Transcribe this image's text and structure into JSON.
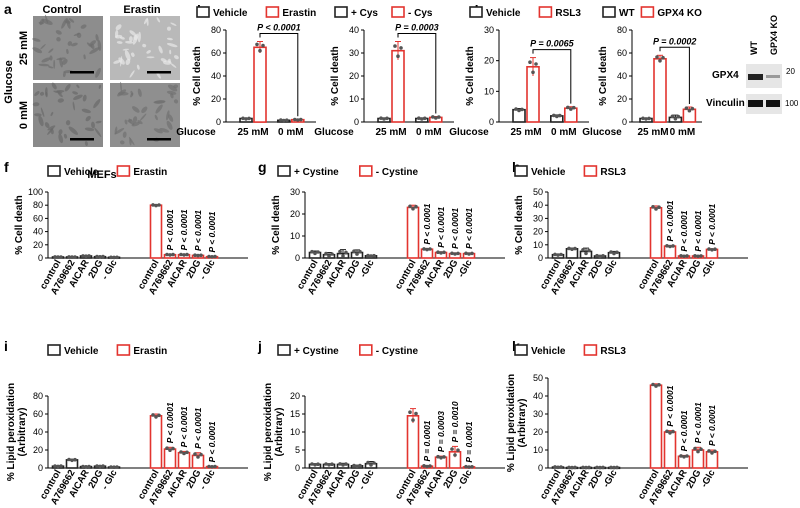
{
  "colors": {
    "vehicle": "#222222",
    "treated": "#e3342f",
    "dot": "#555555"
  },
  "panel_a": {
    "label": "a",
    "col_labels": [
      "Control",
      "Erastin"
    ],
    "row_labels": [
      "25 mM",
      "0 mM"
    ],
    "side_label": "Glucose",
    "bottom_label": "MEFs"
  },
  "western": {
    "col_labels": [
      "WT",
      "GPX4 KO"
    ],
    "rows": [
      "GPX4",
      "Vinculin"
    ],
    "markers": [
      "20",
      "100"
    ]
  },
  "chart_data": [
    {
      "id": "b",
      "type": "bar",
      "ylabel": "% Cell death",
      "ylim": [
        0,
        80
      ],
      "yticks": [
        0,
        20,
        40,
        60,
        80
      ],
      "legend": [
        "Vehicle",
        "Erastin"
      ],
      "xprefix": "Glucose",
      "categories": [
        "25 mM",
        "0 mM"
      ],
      "series": [
        {
          "name": "Vehicle",
          "values": [
            3,
            1.5
          ],
          "err": [
            0.5,
            0.3
          ]
        },
        {
          "name": "Erastin",
          "values": [
            65,
            2
          ],
          "err": [
            5,
            0.4
          ]
        }
      ],
      "sig": "P < 0.0001"
    },
    {
      "id": "c",
      "type": "bar",
      "ylabel": "% Cell death",
      "ylim": [
        0,
        40
      ],
      "yticks": [
        0,
        10,
        20,
        30,
        40
      ],
      "legend": [
        "+ Cys",
        "- Cys"
      ],
      "xprefix": "Glucose",
      "categories": [
        "25 mM",
        "0 mM"
      ],
      "series": [
        {
          "name": "+ Cys",
          "values": [
            1.5,
            1.5
          ],
          "err": [
            0.3,
            0.3
          ]
        },
        {
          "name": "- Cys",
          "values": [
            31,
            2
          ],
          "err": [
            4,
            0.4
          ]
        }
      ],
      "sig": "P = 0.0003"
    },
    {
      "id": "d",
      "type": "bar",
      "ylabel": "% Cell death",
      "ylim": [
        0,
        30
      ],
      "yticks": [
        0,
        10,
        20,
        30
      ],
      "legend": [
        "Vehicle",
        "RSL3"
      ],
      "xprefix": "Glucose",
      "categories": [
        "25 mM",
        "0 mM"
      ],
      "series": [
        {
          "name": "Vehicle",
          "values": [
            4,
            2
          ],
          "err": [
            0.4,
            0.3
          ]
        },
        {
          "name": "RSL3",
          "values": [
            18,
            4.5
          ],
          "err": [
            3,
            0.5
          ]
        }
      ],
      "sig": "P = 0.0065"
    },
    {
      "id": "e",
      "type": "bar",
      "ylabel": "% Cell death",
      "ylim": [
        0,
        80
      ],
      "yticks": [
        0,
        20,
        40,
        60,
        80
      ],
      "legend": [
        "WT",
        "GPX4 KO"
      ],
      "xprefix": "Glucose",
      "categories": [
        "25 mM",
        "0 mM"
      ],
      "series": [
        {
          "name": "WT",
          "values": [
            3,
            4
          ],
          "err": [
            0.5,
            2
          ]
        },
        {
          "name": "GPX4 KO",
          "values": [
            55,
            11
          ],
          "err": [
            3,
            2
          ]
        }
      ],
      "sig": "P = 0.0002"
    },
    {
      "id": "f",
      "type": "bar",
      "ylabel": "% Cell death",
      "ylim": [
        0,
        100
      ],
      "yticks": [
        0,
        20,
        40,
        60,
        80,
        100
      ],
      "legend": [
        "Vehicle",
        "Erastin"
      ],
      "categories": [
        "control",
        "A769662",
        "AICAR",
        "2DG",
        "- Glc"
      ],
      "series": [
        {
          "name": "Vehicle",
          "values": [
            1.5,
            1.5,
            3,
            2,
            1
          ],
          "err": [
            0.3,
            0.3,
            0.5,
            0.4,
            0.2
          ]
        },
        {
          "name": "Erastin",
          "values": [
            80,
            5,
            5,
            4,
            2
          ],
          "err": [
            1,
            0.5,
            0.5,
            0.5,
            0.3
          ]
        }
      ],
      "pvals": [
        "P < 0.0001",
        "P < 0.0001",
        "P < 0.0001",
        "P < 0.0001"
      ]
    },
    {
      "id": "g",
      "type": "bar",
      "ylabel": "% Cell death",
      "ylim": [
        0,
        30
      ],
      "yticks": [
        0,
        10,
        20,
        30
      ],
      "legend": [
        "+ Cystine",
        "- Cystine"
      ],
      "categories": [
        "control",
        "A769662",
        "AICAR",
        "2DG",
        "-Glc"
      ],
      "series": [
        {
          "name": "+ Cystine",
          "values": [
            2.5,
            1.5,
            2,
            2.5,
            1
          ],
          "err": [
            0.7,
            1,
            1.8,
            1.2,
            0.2
          ]
        },
        {
          "name": "- Cystine",
          "values": [
            23,
            4,
            2.5,
            2,
            2
          ],
          "err": [
            1,
            0.3,
            0.3,
            0.3,
            0.3
          ]
        }
      ],
      "pvals": [
        "P < 0.0001",
        "P < 0.0001",
        "P < 0.0001",
        "P < 0.0001"
      ]
    },
    {
      "id": "h",
      "type": "bar",
      "ylabel": "% Cell death",
      "ylim": [
        0,
        50
      ],
      "yticks": [
        0,
        10,
        20,
        30,
        40,
        50
      ],
      "legend": [
        "Vehicle",
        "RSL3"
      ],
      "categories": [
        "control",
        "A769662",
        "ACIAR",
        "2DG",
        "-Glc"
      ],
      "series": [
        {
          "name": "Vehicle",
          "values": [
            2.5,
            7,
            5,
            1.5,
            4
          ],
          "err": [
            0.5,
            0.5,
            2.5,
            0.5,
            1
          ]
        },
        {
          "name": "RSL3",
          "values": [
            38,
            9,
            1.5,
            1.5,
            6.5
          ],
          "err": [
            1.5,
            0.5,
            0.3,
            0.3,
            0.5
          ]
        }
      ],
      "pvals": [
        "P < 0.0001",
        "P < 0.0001",
        "P < 0.0001",
        "P < 0.0001"
      ]
    },
    {
      "id": "i",
      "type": "bar",
      "ylabel": "% Lipid peroxidation",
      "ylabel2": "(Arbitrary)",
      "ylim": [
        0,
        80
      ],
      "yticks": [
        0,
        20,
        40,
        60,
        80
      ],
      "legend": [
        "Vehicle",
        "Erastin"
      ],
      "categories": [
        "control",
        "A769662",
        "AICAR",
        "2DG",
        "- Glc"
      ],
      "series": [
        {
          "name": "Vehicle",
          "values": [
            2,
            9,
            1.5,
            2,
            1
          ],
          "err": [
            0.3,
            0.8,
            0.3,
            0.4,
            0.2
          ]
        },
        {
          "name": "Erastin",
          "values": [
            58,
            21,
            17,
            14,
            1.5
          ],
          "err": [
            2,
            2,
            1.5,
            3,
            0.3
          ]
        }
      ],
      "pvals": [
        "P < 0.0001",
        "P < 0.0001",
        "P < 0.0001",
        "P < 0.0001"
      ]
    },
    {
      "id": "j",
      "type": "bar",
      "ylabel": "% Lipid peroxidation",
      "ylabel2": "(Arbitrary)",
      "ylim": [
        0,
        20
      ],
      "yticks": [
        0,
        5,
        10,
        15,
        20
      ],
      "legend": [
        "+ Cystine",
        "- Cystine"
      ],
      "categories": [
        "control",
        "A769662",
        "AICAR",
        "2DG",
        "- Glc"
      ],
      "series": [
        {
          "name": "+ Cystine",
          "values": [
            1,
            1,
            1,
            0.6,
            1.2
          ],
          "err": [
            0.2,
            0.2,
            0.3,
            0.2,
            0.6
          ]
        },
        {
          "name": "- Cystine",
          "values": [
            14.5,
            0.5,
            3,
            4.5,
            0.3
          ],
          "err": [
            2,
            0.2,
            0.3,
            1.5,
            0.1
          ]
        }
      ],
      "pvals": [
        "P = 0.0001",
        "P = 0.0003",
        "P = 0.0010",
        "P = 0.0001"
      ]
    },
    {
      "id": "k",
      "type": "bar",
      "ylabel": "% Lipid peroxidation",
      "ylabel2": "(Arbitrary)",
      "ylim": [
        0,
        50
      ],
      "yticks": [
        0,
        10,
        20,
        30,
        40,
        50
      ],
      "legend": [
        "Vehicle",
        "RSL3"
      ],
      "categories": [
        "control",
        "A769662",
        "ACIAR",
        "2DG",
        "-Glc"
      ],
      "series": [
        {
          "name": "Vehicle",
          "values": [
            0.5,
            0.3,
            0.3,
            0.3,
            0.3
          ],
          "err": [
            0.2,
            0.1,
            0.1,
            0.1,
            0.1
          ]
        },
        {
          "name": "RSL3",
          "values": [
            46,
            20,
            6.5,
            10,
            9
          ],
          "err": [
            0.8,
            0.8,
            0.5,
            1.5,
            1
          ]
        }
      ],
      "pvals": [
        "P < 0.0001",
        "P < 0.0001",
        "P < 0.0001",
        "P < 0.0001"
      ]
    }
  ]
}
